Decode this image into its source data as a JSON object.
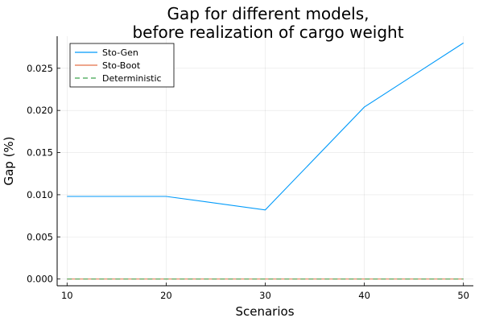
{
  "chart_data": {
    "type": "line",
    "title_line1": "Gap for different models,",
    "title_line2": "before realization of cargo weight",
    "xlabel": "Scenarios",
    "ylabel": "Gap (%)",
    "xlim": [
      9,
      51
    ],
    "ylim": [
      -0.0008,
      0.0288
    ],
    "x_ticks": [
      10,
      20,
      30,
      40,
      50
    ],
    "x_tick_labels": [
      "10",
      "20",
      "30",
      "40",
      "50"
    ],
    "y_ticks": [
      0,
      0.005,
      0.01,
      0.015,
      0.02,
      0.025
    ],
    "y_tick_labels": [
      "0.000",
      "0.005",
      "0.010",
      "0.015",
      "0.020",
      "0.025"
    ],
    "grid": true,
    "legend_position": "top-left",
    "x": [
      10,
      20,
      30,
      40,
      50
    ],
    "series": [
      {
        "name": "Sto-Gen",
        "values": [
          0.0098,
          0.0098,
          0.0082,
          0.0204,
          0.028
        ],
        "color": "#009AFA",
        "dash": "solid"
      },
      {
        "name": "Sto-Boot",
        "values": [
          0,
          0,
          0,
          0,
          0
        ],
        "color": "#E36F47",
        "dash": "solid"
      },
      {
        "name": "Deterministic",
        "values": [
          0,
          0,
          0,
          0,
          0
        ],
        "color": "#3EA44E",
        "dash": "dashed"
      }
    ]
  }
}
